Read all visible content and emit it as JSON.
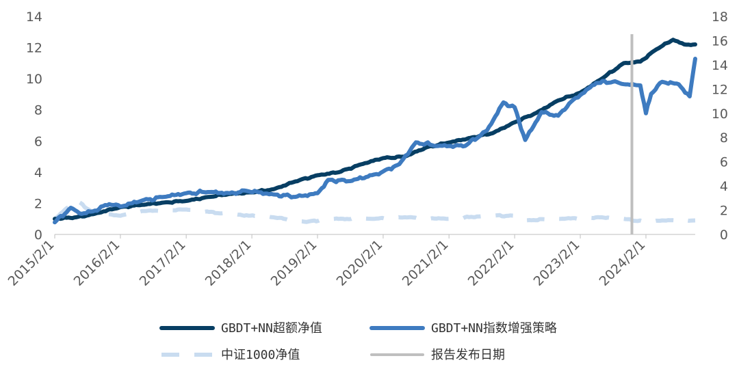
{
  "chart_data": {
    "type": "line",
    "x_ticks": [
      "2015/2/1",
      "2016/2/1",
      "2017/2/1",
      "2018/2/1",
      "2019/2/1",
      "2020/2/1",
      "2021/2/1",
      "2022/2/1",
      "2023/2/1",
      "2024/2/1"
    ],
    "x_range": [
      "2015/2/1",
      "2024/11/1"
    ],
    "y_left": {
      "range": [
        0,
        14
      ],
      "ticks": [
        0,
        2,
        4,
        6,
        8,
        10,
        12,
        14
      ]
    },
    "y_right": {
      "range": [
        0,
        18
      ],
      "ticks": [
        0,
        2,
        4,
        6,
        8,
        10,
        12,
        14,
        16,
        18
      ]
    },
    "grid": false,
    "legend_position": "bottom",
    "series": [
      {
        "name": "GBDT+NN超额净值",
        "axis": "left",
        "color": "#073E63",
        "style": "solid",
        "points": [
          [
            "2015/2/1",
            1.0
          ],
          [
            "2015/6/1",
            1.1
          ],
          [
            "2015/9/1",
            1.3
          ],
          [
            "2016/2/1",
            1.75
          ],
          [
            "2016/6/1",
            1.9
          ],
          [
            "2016/10/1",
            2.05
          ],
          [
            "2017/2/1",
            2.15
          ],
          [
            "2017/6/1",
            2.4
          ],
          [
            "2017/10/1",
            2.6
          ],
          [
            "2018/2/1",
            2.7
          ],
          [
            "2018/6/1",
            2.9
          ],
          [
            "2018/10/1",
            3.4
          ],
          [
            "2019/2/1",
            3.8
          ],
          [
            "2019/6/1",
            4.0
          ],
          [
            "2019/10/1",
            4.5
          ],
          [
            "2020/2/1",
            4.9
          ],
          [
            "2020/6/1",
            5.0
          ],
          [
            "2020/10/1",
            5.6
          ],
          [
            "2021/2/1",
            5.9
          ],
          [
            "2021/6/1",
            6.2
          ],
          [
            "2021/10/1",
            6.5
          ],
          [
            "2022/2/1",
            7.2
          ],
          [
            "2022/6/1",
            7.8
          ],
          [
            "2022/10/1",
            8.6
          ],
          [
            "2023/2/1",
            9.1
          ],
          [
            "2023/6/1",
            10.0
          ],
          [
            "2023/10/1",
            11.0
          ],
          [
            "2024/1/1",
            11.1
          ],
          [
            "2024/4/1",
            11.9
          ],
          [
            "2024/7/1",
            12.5
          ],
          [
            "2024/9/1",
            12.2
          ],
          [
            "2024/11/1",
            12.2
          ]
        ]
      },
      {
        "name": "GBDT+NN指数增强策略",
        "axis": "right",
        "color": "#3E7BC0",
        "style": "solid",
        "points": [
          [
            "2015/2/1",
            1.0
          ],
          [
            "2015/5/1",
            2.2
          ],
          [
            "2015/7/1",
            1.7
          ],
          [
            "2015/9/1",
            1.9
          ],
          [
            "2015/12/1",
            2.5
          ],
          [
            "2016/2/1",
            2.3
          ],
          [
            "2016/6/1",
            2.8
          ],
          [
            "2016/10/1",
            3.1
          ],
          [
            "2017/2/1",
            3.4
          ],
          [
            "2017/6/1",
            3.5
          ],
          [
            "2017/10/1",
            3.4
          ],
          [
            "2018/1/1",
            3.6
          ],
          [
            "2018/6/1",
            3.3
          ],
          [
            "2018/10/1",
            3.1
          ],
          [
            "2019/2/1",
            3.4
          ],
          [
            "2019/4/1",
            4.5
          ],
          [
            "2019/8/1",
            4.4
          ],
          [
            "2019/12/1",
            4.9
          ],
          [
            "2020/2/1",
            5.2
          ],
          [
            "2020/5/1",
            5.8
          ],
          [
            "2020/8/1",
            7.6
          ],
          [
            "2020/12/1",
            7.3
          ],
          [
            "2021/2/1",
            7.3
          ],
          [
            "2021/5/1",
            7.3
          ],
          [
            "2021/9/1",
            8.6
          ],
          [
            "2021/12/1",
            10.9
          ],
          [
            "2022/2/1",
            10.5
          ],
          [
            "2022/4/1",
            7.8
          ],
          [
            "2022/7/1",
            10.1
          ],
          [
            "2022/10/1",
            9.8
          ],
          [
            "2022/12/1",
            10.8
          ],
          [
            "2023/2/1",
            11.5
          ],
          [
            "2023/5/1",
            12.5
          ],
          [
            "2023/8/1",
            12.6
          ],
          [
            "2023/10/1",
            12.4
          ],
          [
            "2024/1/1",
            12.3
          ],
          [
            "2024/2/1",
            10.0
          ],
          [
            "2024/3/1",
            11.6
          ],
          [
            "2024/5/1",
            12.6
          ],
          [
            "2024/8/1",
            12.4
          ],
          [
            "2024/10/1",
            11.4
          ],
          [
            "2024/11/1",
            14.5
          ]
        ]
      },
      {
        "name": "中证1000净值",
        "axis": "left",
        "color": "#C9DCF0",
        "style": "dashed",
        "points": [
          [
            "2015/2/1",
            1.0
          ],
          [
            "2015/6/1",
            2.2
          ],
          [
            "2015/9/1",
            1.4
          ],
          [
            "2016/2/1",
            1.2
          ],
          [
            "2016/6/1",
            1.5
          ],
          [
            "2017/2/1",
            1.6
          ],
          [
            "2017/10/1",
            1.3
          ],
          [
            "2018/6/1",
            1.1
          ],
          [
            "2018/12/1",
            0.8
          ],
          [
            "2019/4/1",
            1.0
          ],
          [
            "2019/12/1",
            1.0
          ],
          [
            "2020/6/1",
            1.1
          ],
          [
            "2021/2/1",
            1.0
          ],
          [
            "2021/9/1",
            1.2
          ],
          [
            "2022/2/1",
            1.2
          ],
          [
            "2022/4/1",
            0.9
          ],
          [
            "2022/10/1",
            1.0
          ],
          [
            "2023/6/1",
            1.1
          ],
          [
            "2023/10/1",
            1.0
          ],
          [
            "2024/2/1",
            0.8
          ],
          [
            "2024/5/1",
            0.9
          ],
          [
            "2024/11/1",
            0.9
          ]
        ]
      }
    ],
    "markers": [
      {
        "name": "报告发布日期",
        "date": "2023/11/15",
        "color": "#BFBFBF"
      }
    ],
    "legend": [
      "GBDT+NN超额净值",
      "GBDT+NN指数增强策略",
      "中证1000净值",
      "报告发布日期"
    ]
  }
}
